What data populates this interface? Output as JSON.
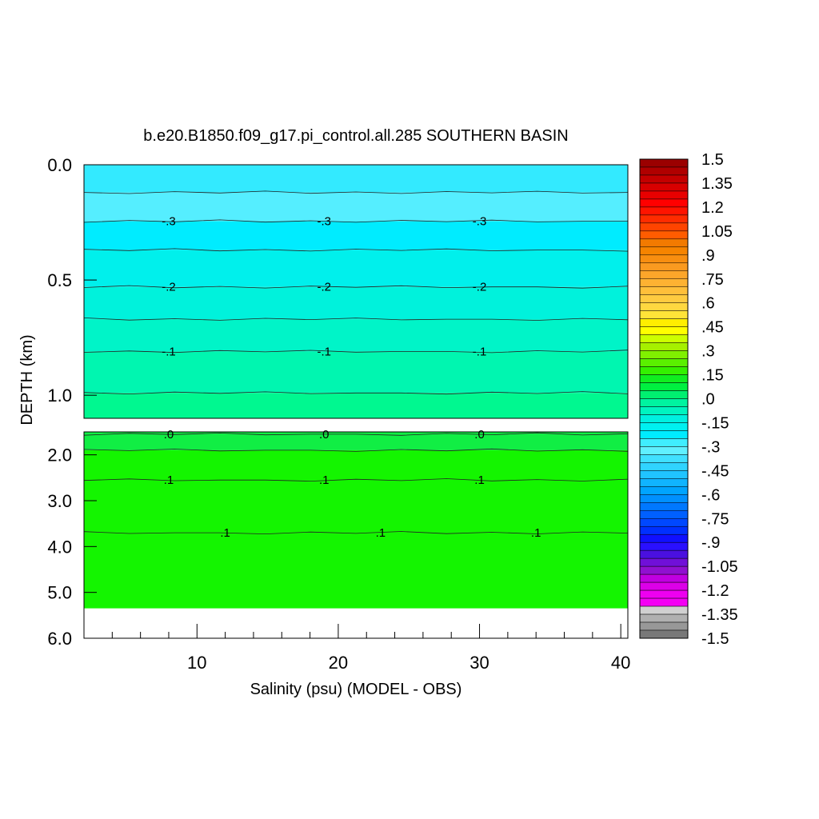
{
  "chart_data": {
    "type": "heatmap",
    "title": "b.e20.B1850.f09_g17.pi_control.all.285 SOUTHERN BASIN",
    "xlabel": "Salinity (psu) (MODEL - OBS)",
    "ylabel": "DEPTH (km)",
    "xlim": [
      2,
      40.5
    ],
    "x_ticks": [
      "10",
      "20",
      "30",
      "40"
    ],
    "ylim_upper": [
      0.0,
      1.1
    ],
    "y_ticks_upper": [
      "0.0",
      "0.5",
      "1.0"
    ],
    "ylim_lower": [
      1.5,
      6.0
    ],
    "y_ticks_lower": [
      "2.0",
      "3.0",
      "4.0",
      "5.0",
      "6.0"
    ],
    "data_bottom_depth_km": 5.35,
    "contour_lines": [
      {
        "depth_km": 0.12,
        "value": -0.35
      },
      {
        "depth_km": 0.245,
        "value": -0.3,
        "label": "-.3"
      },
      {
        "depth_km": 0.37,
        "value": -0.25
      },
      {
        "depth_km": 0.53,
        "value": -0.2,
        "label": "-.2"
      },
      {
        "depth_km": 0.67,
        "value": -0.15
      },
      {
        "depth_km": 0.81,
        "value": -0.1,
        "label": "-.1"
      },
      {
        "depth_km": 0.99,
        "value": -0.05
      },
      {
        "depth_km": 1.55,
        "value": 0.0,
        "label": ".0"
      },
      {
        "depth_km": 1.9,
        "value": 0.05
      },
      {
        "depth_km": 2.55,
        "value": 0.1,
        "label": ".1"
      },
      {
        "depth_km": 3.7,
        "value": 0.1,
        "label": ".1"
      }
    ],
    "label_x_upper": [
      8,
      19,
      30
    ],
    "label_x_lower": [
      12,
      23,
      34
    ],
    "fill_bands": [
      {
        "top_km": 0.0,
        "bottom_km": 0.12,
        "color": "#33eaff"
      },
      {
        "top_km": 0.12,
        "bottom_km": 0.245,
        "color": "#55eeff"
      },
      {
        "top_km": 0.245,
        "bottom_km": 0.37,
        "color": "#00ecff"
      },
      {
        "top_km": 0.37,
        "bottom_km": 0.53,
        "color": "#00f0ec"
      },
      {
        "top_km": 0.53,
        "bottom_km": 0.67,
        "color": "#00f2dc"
      },
      {
        "top_km": 0.67,
        "bottom_km": 0.81,
        "color": "#00f4c8"
      },
      {
        "top_km": 0.81,
        "bottom_km": 0.99,
        "color": "#00f6b0"
      },
      {
        "top_km": 0.99,
        "bottom_km": 1.1,
        "color": "#00f890"
      },
      {
        "top_km": 1.5,
        "bottom_km": 1.9,
        "color": "#11ee44"
      },
      {
        "top_km": 1.9,
        "bottom_km": 5.35,
        "color": "#14f500"
      }
    ],
    "colorbar": {
      "labels": [
        "1.5",
        "1.35",
        "1.2",
        "1.05",
        ".9",
        ".75",
        ".6",
        ".45",
        ".3",
        ".15",
        ".0",
        "-.15",
        "-.3",
        "-.45",
        "-.6",
        "-.75",
        "-.9",
        "-1.05",
        "-1.2",
        "-1.35",
        "-1.5"
      ],
      "colors": [
        "#9b0000",
        "#b00000",
        "#c40000",
        "#d80000",
        "#e80000",
        "#ff0000",
        "#ff1400",
        "#ff2c00",
        "#ff4400",
        "#ff5c00",
        "#f27a00",
        "#f68400",
        "#f88e10",
        "#fa9a20",
        "#fca62a",
        "#feb232",
        "#ffbf3a",
        "#ffcb40",
        "#ffd840",
        "#ffe438",
        "#ffee00",
        "#ffff00",
        "#ccff00",
        "#a6f000",
        "#80f000",
        "#5af000",
        "#34f000",
        "#10ee20",
        "#00f040",
        "#00f070",
        "#00f4a0",
        "#00f4c0",
        "#00f0e0",
        "#00f0f0",
        "#00ecff",
        "#40eeff",
        "#60f0ff",
        "#40e0ff",
        "#30d4ff",
        "#20c4ff",
        "#10b4ff",
        "#00a4ff",
        "#0090ff",
        "#0078ff",
        "#0060ff",
        "#0048ff",
        "#0030ff",
        "#1010ff",
        "#2a10ff",
        "#4a10e0",
        "#7010d8",
        "#9010d0",
        "#c000e0",
        "#dc00e8",
        "#ee00f0",
        "#f400f4",
        "#d0d0d0",
        "#b0b0b0",
        "#989898",
        "#787878"
      ]
    }
  }
}
